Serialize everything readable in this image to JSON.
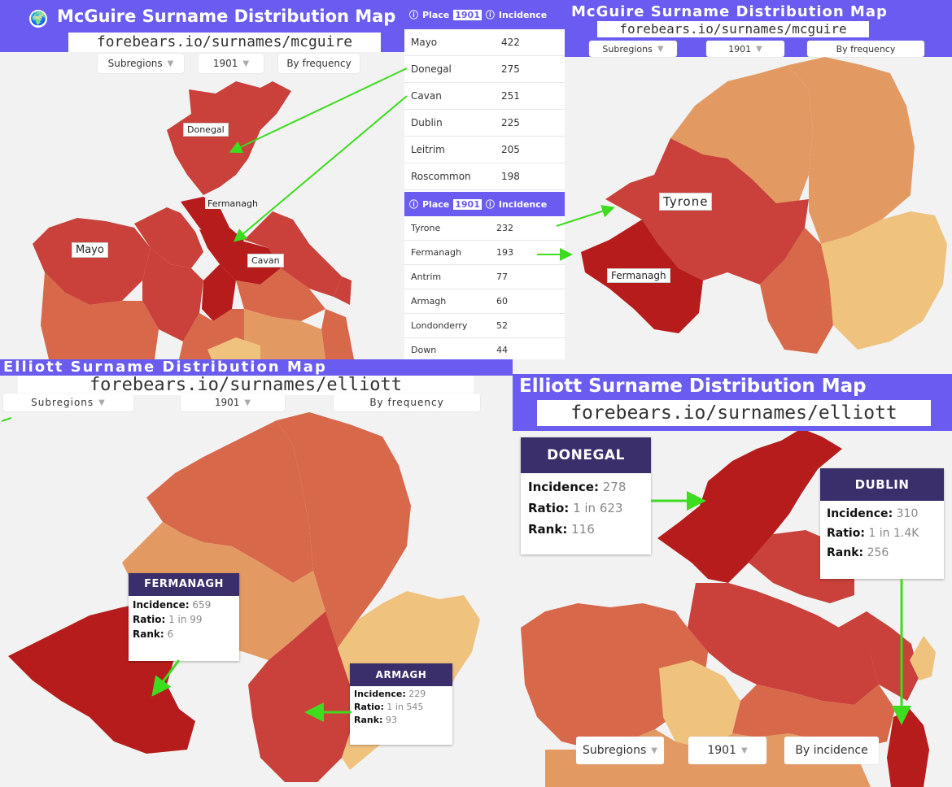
{
  "mcguire_ireland": {
    "title": "McGuire Surname Distribution Map",
    "url": "forebears.io/surnames/mcguire",
    "controls": {
      "region": "Subregions",
      "year": "1901",
      "sort": "By frequency"
    },
    "labels": {
      "donegal": "Donegal",
      "fermanagh": "Fermanagh",
      "mayo": "Mayo",
      "cavan": "Cavan"
    }
  },
  "ireland_table": {
    "header": {
      "place": "Place",
      "year": "1901",
      "incidence": "Incidence"
    },
    "rows": [
      {
        "place": "Mayo",
        "incidence": "422"
      },
      {
        "place": "Donegal",
        "incidence": "275"
      },
      {
        "place": "Cavan",
        "incidence": "251"
      },
      {
        "place": "Dublin",
        "incidence": "225"
      },
      {
        "place": "Leitrim",
        "incidence": "205"
      },
      {
        "place": "Roscommon",
        "incidence": "198"
      }
    ]
  },
  "ni_table": {
    "header": {
      "place": "Place",
      "year": "1901",
      "incidence": "Incidence"
    },
    "rows": [
      {
        "place": "Tyrone",
        "incidence": "232"
      },
      {
        "place": "Fermanagh",
        "incidence": "193"
      },
      {
        "place": "Antrim",
        "incidence": "77"
      },
      {
        "place": "Armagh",
        "incidence": "60"
      },
      {
        "place": "Londonderry",
        "incidence": "52"
      },
      {
        "place": "Down",
        "incidence": "44"
      }
    ]
  },
  "mcguire_ni": {
    "title": "McGuire Surname Distribution Map",
    "url": "forebears.io/surnames/mcguire",
    "controls": {
      "region": "Subregions",
      "year": "1901",
      "sort": "By frequency"
    },
    "labels": {
      "tyrone": "Tyrone",
      "fermanagh": "Fermanagh"
    }
  },
  "elliott_ni": {
    "title": "Elliott Surname Distribution Map",
    "url": "forebears.io/surnames/elliott",
    "controls": {
      "region": "Subregions",
      "year": "1901",
      "sort": "By frequency"
    },
    "fermanagh": {
      "name": "FERMANAGH",
      "incidence_label": "Incidence",
      "incidence": "659",
      "ratio_label": "Ratio",
      "ratio": "1 in 99",
      "rank_label": "Rank",
      "rank": "6"
    },
    "armagh": {
      "name": "ARMAGH",
      "incidence_label": "Incidence",
      "incidence": "229",
      "ratio_label": "Ratio",
      "ratio": "1 in 545",
      "rank_label": "Rank",
      "rank": "93"
    }
  },
  "elliott_ireland": {
    "title": "Elliott Surname Distribution Map",
    "url": "forebears.io/surnames/elliott",
    "controls": {
      "region": "Subregions",
      "year": "1901",
      "sort": "By incidence"
    },
    "donegal": {
      "name": "DONEGAL",
      "incidence_label": "Incidence",
      "incidence": "278",
      "ratio_label": "Ratio",
      "ratio": "1 in 623",
      "rank_label": "Rank",
      "rank": "116"
    },
    "dublin": {
      "name": "DUBLIN",
      "incidence_label": "Incidence",
      "incidence": "310",
      "ratio_label": "Ratio",
      "ratio": "1 in 1.4K",
      "rank_label": "Rank",
      "rank": "256"
    }
  },
  "colors": {
    "banner": "#6a5cf0",
    "dark_red": "#b71c1c",
    "red": "#c9413a",
    "mid": "#d8684a",
    "orange": "#e39a62",
    "light": "#efc27e",
    "info_header": "#3a2f6b",
    "arrow": "#3ddc1e"
  }
}
